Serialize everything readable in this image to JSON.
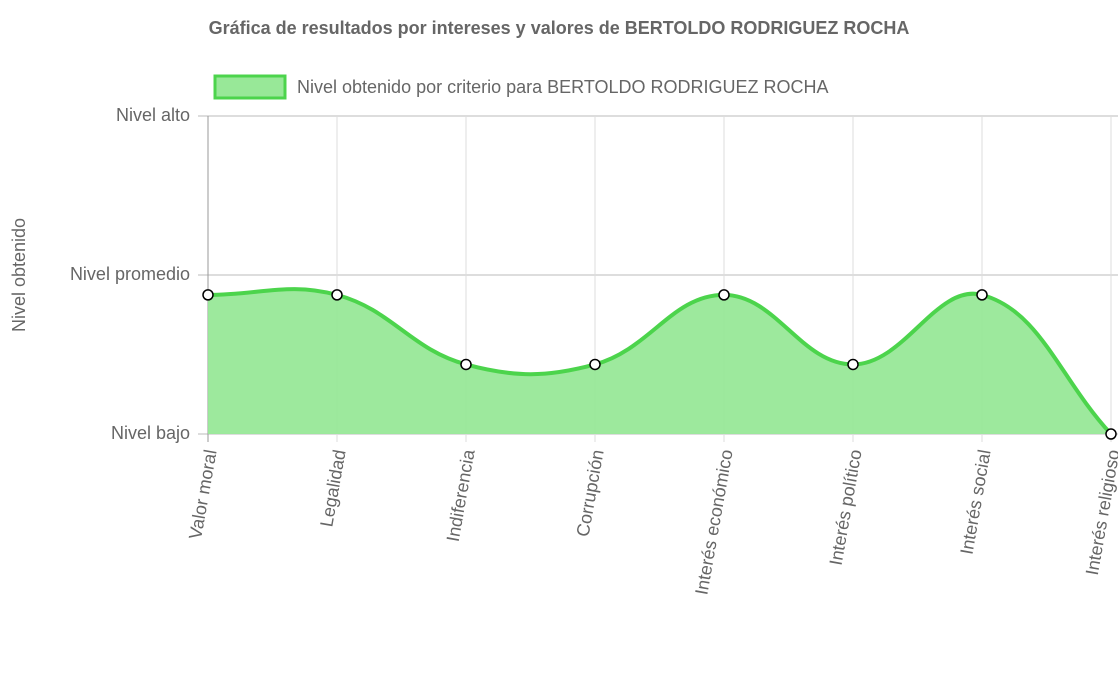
{
  "chart_data": {
    "type": "area",
    "title": "Gráfica de resultados por intereses y valores de BERTOLDO RODRIGUEZ ROCHA",
    "y_label": "Nivel obtenido",
    "categories": [
      "Valor moral",
      "Legalidad",
      "Indiferencia",
      "Corrupción",
      "Interés económico",
      "Interés político",
      "Interés social",
      "Interés religioso"
    ],
    "series": [
      {
        "name": "Nivel obtenido por criterio para BERTOLDO RODRIGUEZ ROCHA",
        "color": "#4cd44c",
        "fill": "#98e898",
        "values": [
          7,
          7,
          3.5,
          3.5,
          7,
          3.5,
          7,
          0
        ]
      }
    ],
    "ylim": [
      0,
      16
    ],
    "yticks": [
      {
        "value": 0,
        "label": "Nivel bajo"
      },
      {
        "value": 8,
        "label": "Nivel promedio"
      },
      {
        "value": 16,
        "label": "Nivel alto"
      }
    ],
    "grid": true,
    "legend": "top"
  }
}
